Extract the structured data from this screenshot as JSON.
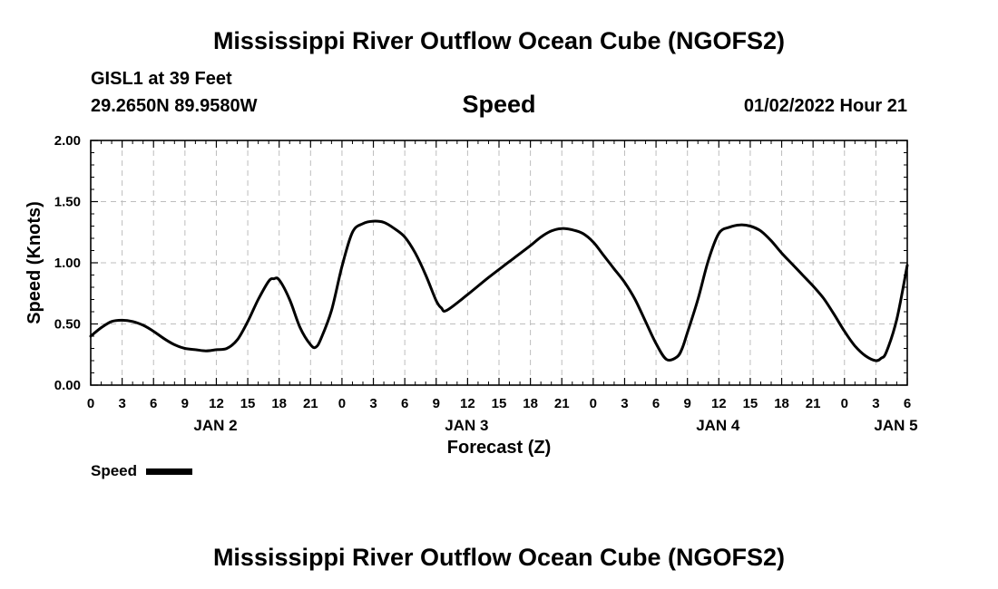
{
  "header": {
    "title": "Mississippi River Outflow Ocean Cube (NGOFS2)",
    "station": "GISL1 at 39 Feet",
    "coords": "29.2650N  89.9580W",
    "variable": "Speed",
    "datetime": "01/02/2022 Hour 21"
  },
  "legend": {
    "label": "Speed",
    "color": "#000000"
  },
  "footer": {
    "title": "Mississippi River Outflow Ocean Cube (NGOFS2)"
  },
  "chart_data": {
    "type": "line",
    "title": "Speed",
    "xlabel": "Forecast (Z)",
    "ylabel": "Speed (Knots)",
    "ylim": [
      0,
      2
    ],
    "xlim": [
      0,
      78
    ],
    "grid": true,
    "yticks": [
      "0.00",
      "0.50",
      "1.00",
      "1.50",
      "2.00"
    ],
    "xticks": [
      "0",
      "3",
      "6",
      "9",
      "12",
      "15",
      "18",
      "21",
      "0",
      "3",
      "6",
      "9",
      "12",
      "15",
      "18",
      "21",
      "0",
      "3",
      "6",
      "9",
      "12",
      "15",
      "18",
      "21",
      "0",
      "3",
      "6"
    ],
    "day_labels": [
      {
        "label": "JAN 2",
        "hour": 12
      },
      {
        "label": "JAN 3",
        "hour": 36
      },
      {
        "label": "JAN 4",
        "hour": 60
      },
      {
        "label": "JAN 5",
        "hour": 77
      }
    ],
    "series": [
      {
        "name": "Speed",
        "x": [
          0,
          1,
          2,
          3,
          4,
          5,
          6,
          7,
          8,
          9,
          10,
          11,
          12,
          13,
          14,
          15,
          16,
          17,
          17.5,
          18,
          19,
          20,
          21,
          21.5,
          22,
          23,
          24,
          25,
          26,
          27,
          28,
          29,
          30,
          31,
          32,
          33,
          33.5,
          34,
          36,
          38,
          40,
          42,
          43,
          44,
          45,
          46,
          47,
          48,
          49,
          50,
          51,
          52,
          53,
          54,
          55,
          56,
          56.5,
          57,
          58,
          59,
          60,
          61,
          62,
          63,
          64,
          65,
          66,
          67,
          68,
          69,
          70,
          71,
          72,
          73,
          74,
          75,
          75.5,
          76,
          77,
          78
        ],
        "values": [
          0.4,
          0.47,
          0.52,
          0.53,
          0.52,
          0.49,
          0.44,
          0.38,
          0.33,
          0.3,
          0.29,
          0.28,
          0.29,
          0.3,
          0.37,
          0.52,
          0.7,
          0.85,
          0.87,
          0.86,
          0.7,
          0.47,
          0.33,
          0.31,
          0.38,
          0.61,
          0.97,
          1.25,
          1.32,
          1.34,
          1.33,
          1.28,
          1.21,
          1.08,
          0.9,
          0.69,
          0.63,
          0.61,
          0.74,
          0.88,
          1.01,
          1.14,
          1.21,
          1.26,
          1.28,
          1.27,
          1.24,
          1.17,
          1.06,
          0.95,
          0.84,
          0.7,
          0.52,
          0.34,
          0.21,
          0.23,
          0.3,
          0.43,
          0.7,
          1.02,
          1.24,
          1.29,
          1.31,
          1.3,
          1.26,
          1.18,
          1.08,
          0.99,
          0.9,
          0.81,
          0.71,
          0.58,
          0.44,
          0.32,
          0.24,
          0.2,
          0.22,
          0.27,
          0.54,
          0.98
        ]
      }
    ]
  }
}
